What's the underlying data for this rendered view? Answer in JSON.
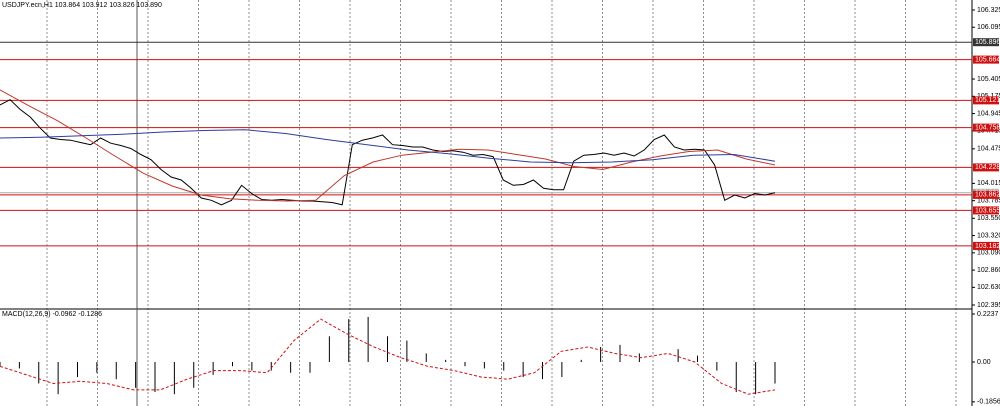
{
  "chart_data": {
    "type": "line",
    "title": "USDJPY.ecn,H1  103.864 103.912 103.826 103.890",
    "ylim": [
      102.355,
      106.458
    ],
    "yticks": [
      {
        "value": 106.325,
        "label": "106.325"
      },
      {
        "value": 106.095,
        "label": "106.095"
      },
      {
        "value": 105.405,
        "label": "105.405"
      },
      {
        "value": 105.175,
        "label": "105.175"
      },
      {
        "value": 104.945,
        "label": "104.945"
      },
      {
        "value": 104.715,
        "label": "104.715"
      },
      {
        "value": 104.475,
        "label": "104.475"
      },
      {
        "value": 104.015,
        "label": "104.015"
      },
      {
        "value": 103.785,
        "label": "103.785"
      },
      {
        "value": 103.55,
        "label": "103.550"
      },
      {
        "value": 103.32,
        "label": "103.320"
      },
      {
        "value": 103.09,
        "label": "103.090"
      },
      {
        "value": 102.86,
        "label": "102.860"
      },
      {
        "value": 102.63,
        "label": "102.630"
      },
      {
        "value": 102.395,
        "label": "102.395"
      }
    ],
    "levels": [
      {
        "value": 105.896,
        "label": "105.896",
        "color": "#333333"
      },
      {
        "value": 105.664,
        "label": "105.664",
        "color": "#d01010"
      },
      {
        "value": 105.121,
        "label": "105.121",
        "color": "#d01010"
      },
      {
        "value": 104.758,
        "label": "104.758",
        "color": "#d01010"
      },
      {
        "value": 104.228,
        "label": "104.228",
        "color": "#d01010"
      },
      {
        "value": 103.89,
        "label": "103.890",
        "color": "#aaaaaa"
      },
      {
        "value": 103.862,
        "label": "103.862",
        "color": "#d01010"
      },
      {
        "value": 103.655,
        "label": "103.655",
        "color": "#d01010"
      },
      {
        "value": 103.182,
        "label": "103.182",
        "color": "#d01010"
      }
    ],
    "series": [
      {
        "color": "#000000",
        "values": [
          105.06,
          105.13,
          105.0,
          104.9,
          104.75,
          104.62,
          104.6,
          104.59,
          104.56,
          104.53,
          104.62,
          104.55,
          104.52,
          104.48,
          104.4,
          104.33,
          104.2,
          104.1,
          104.06,
          103.95,
          103.82,
          103.79,
          103.73,
          103.79,
          103.99,
          103.88,
          103.8,
          103.79,
          103.8,
          103.79,
          103.78,
          103.78,
          103.77,
          103.76,
          103.73,
          104.53,
          104.59,
          104.62,
          104.66,
          104.53,
          104.52,
          104.5,
          104.5,
          104.46,
          104.44,
          104.45,
          104.43,
          104.39,
          104.4,
          104.37,
          104.06,
          103.99,
          104.0,
          104.06,
          103.95,
          103.93,
          103.93,
          104.31,
          104.39,
          104.4,
          104.42,
          104.39,
          104.42,
          104.38,
          104.46,
          104.6,
          104.66,
          104.5,
          104.46,
          104.47,
          104.46,
          104.26,
          103.79,
          103.86,
          103.82,
          103.88,
          103.86,
          103.89
        ]
      },
      {
        "color": "#c0392b",
        "values": [
          105.26,
          105.05,
          104.85,
          104.62,
          104.38,
          104.15,
          103.98,
          103.86,
          103.81,
          103.79,
          103.78,
          103.79,
          104.12,
          104.3,
          104.39,
          104.43,
          104.47,
          104.46,
          104.4,
          104.34,
          104.24,
          104.2,
          104.3,
          104.38,
          104.44,
          104.46,
          104.34,
          104.26
        ]
      },
      {
        "color": "#2c3e9c",
        "values": [
          104.62,
          104.63,
          104.65,
          104.67,
          104.7,
          104.72,
          104.73,
          104.68,
          104.6,
          104.53,
          104.46,
          104.41,
          104.35,
          104.3,
          104.29,
          104.3,
          104.33,
          104.39,
          104.4,
          104.31
        ]
      }
    ],
    "macd": {
      "title": "MACD(12,26,9) -0.0962 -0.1286",
      "ylim": [
        -0.205,
        0.2424
      ],
      "yticks": [
        {
          "value": 0.2237,
          "label": "0.2237"
        },
        {
          "value": 0,
          "label": "0.00"
        },
        {
          "value": -0.1856,
          "label": "-0.1856"
        }
      ],
      "histogram": {
        "color": "#000000",
        "values": [
          -0.02,
          -0.03,
          -0.1,
          -0.15,
          -0.07,
          -0.05,
          -0.08,
          -0.12,
          -0.14,
          -0.15,
          -0.12,
          -0.06,
          -0.02,
          -0.04,
          -0.04,
          -0.05,
          -0.05,
          0.12,
          0.2,
          0.21,
          0.12,
          0.1,
          0.04,
          0.01,
          -0.02,
          -0.03,
          -0.04,
          -0.07,
          -0.08,
          -0.07,
          0.01,
          0.07,
          0.08,
          0.04,
          0.0,
          0.06,
          0.03,
          -0.04,
          -0.14,
          -0.15,
          -0.1
        ]
      },
      "signal": {
        "color": "#d01010",
        "values": [
          -0.02,
          -0.06,
          -0.1,
          -0.09,
          -0.1,
          -0.13,
          -0.13,
          -0.08,
          -0.04,
          -0.04,
          -0.05,
          0.1,
          0.2,
          0.13,
          0.07,
          0.02,
          -0.02,
          -0.04,
          -0.07,
          -0.08,
          -0.05,
          0.05,
          0.07,
          0.04,
          0.02,
          0.04,
          0.0,
          -0.1,
          -0.15,
          -0.13
        ]
      }
    }
  }
}
